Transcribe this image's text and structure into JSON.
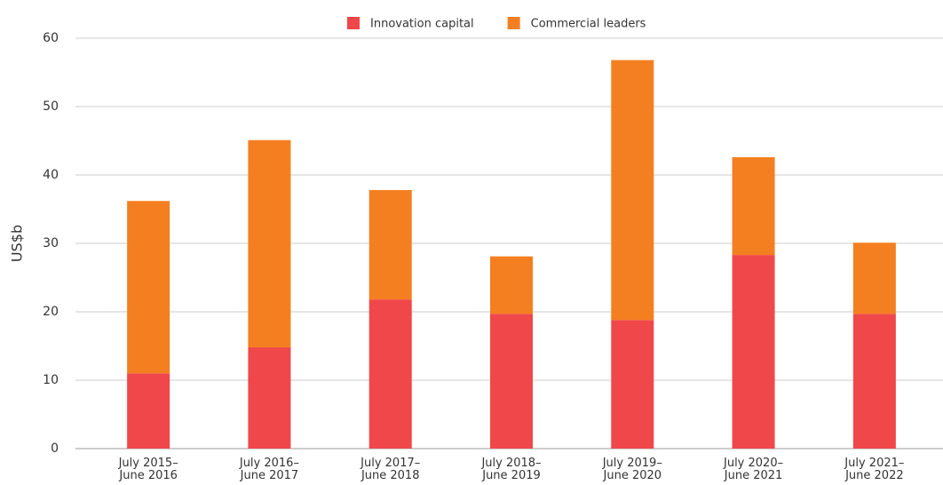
{
  "chart_data": {
    "type": "stacked_bar",
    "y_label": "US$b",
    "categories": [
      "July 2015–\nJune 2016",
      "July 2016–\nJune 2017",
      "July 2017–\nJune 2018",
      "July 2018–\nJune 2019",
      "July 2019–\nJune 2020",
      "July 2020–\nJune 2021",
      "July 2021–\nJune 2022"
    ],
    "series": [
      {
        "name": "Innovation capital",
        "color": "#f0474a",
        "values": [
          11.0,
          14.8,
          21.8,
          19.7,
          18.8,
          28.3,
          19.7
        ]
      },
      {
        "name": "Commercial leaders",
        "color": "#f47f20",
        "values": [
          25.2,
          30.3,
          16.0,
          8.4,
          38.0,
          14.3,
          10.4
        ]
      }
    ],
    "ylim": [
      0,
      60
    ],
    "yticks": [
      0,
      10,
      20,
      30,
      40,
      50,
      60
    ],
    "grid": true,
    "legend": "top"
  }
}
